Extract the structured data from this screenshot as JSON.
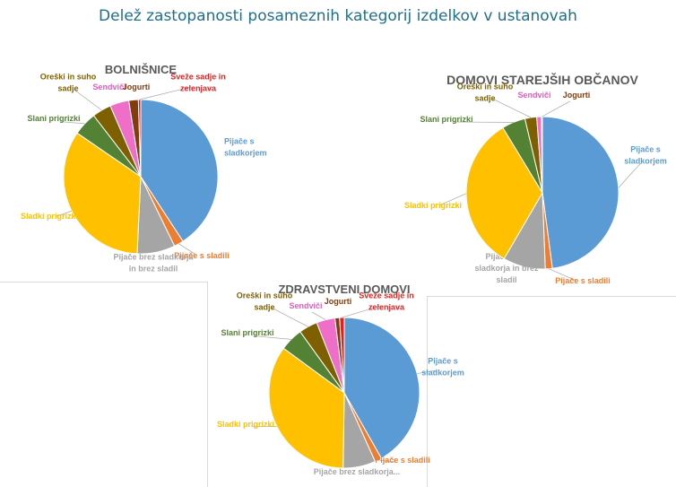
{
  "title": "Delež zastopanosti posameznih kategorij izdelkov v ustanovah",
  "categories": [
    {
      "label": "Pijače s sladkorjem",
      "color": "#5b9bd5",
      "text_color": "#5b9bd5"
    },
    {
      "label": "Pijače s sladili",
      "color": "#ed7d31",
      "text_color": "#ed7d31"
    },
    {
      "label": "Pijače brez sladkorja in brez sladil",
      "color": "#a5a5a5",
      "text_color": "#a5a5a5"
    },
    {
      "label": "Sladki prigrizki",
      "color": "#ffc000",
      "text_color": "#ffc000"
    },
    {
      "label": "Slani prigrizki",
      "color": "#548235",
      "text_color": "#548235"
    },
    {
      "label": "Oreški in suho sadje",
      "color": "#7f6000",
      "text_color": "#7f6000"
    },
    {
      "label": "Sendviči",
      "color": "#ee6ec8",
      "text_color": "#e25cc0"
    },
    {
      "label": "Jogurti",
      "color": "#843c0c",
      "text_color": "#843c0c"
    },
    {
      "label": "Sveže sadje in zelenjava",
      "color": "#e02020",
      "text_color": "#e02020"
    }
  ],
  "chart_data": [
    {
      "type": "pie",
      "title": "BOLNIŠNICE",
      "categories": [
        "Pijače s sladkorjem",
        "Pijače s sladili",
        "Pijače brez sladkorja in brez sladil",
        "Sladki prigrizki",
        "Slani prigrizki",
        "Oreški in suho sadje",
        "Sendviči",
        "Jogurti",
        "Sveže sadje in zelenjava"
      ],
      "values": [
        41,
        2,
        8,
        34,
        5,
        4,
        4,
        2,
        0.5
      ],
      "labels": [
        [
          "Pijače s",
          "sladkorjem"
        ],
        [
          "Pijače s sladili"
        ],
        [
          "Pijače brez sladkorja",
          "in brez sladil"
        ],
        [
          "Sladki prigrizki"
        ],
        [
          "Slani prigrizki"
        ],
        [
          "Oreški in suho",
          "sadje"
        ],
        [
          "Sendviči"
        ],
        [
          "Jogurti"
        ],
        [
          "Sveže sadje in",
          "zelenjava"
        ]
      ]
    },
    {
      "type": "pie",
      "title": "DOMOVI STAREJŠIH OBČANOV",
      "categories": [
        "Pijače s sladkorjem",
        "Pijače s sladili",
        "Pijače brez sladkorja in brez sladil",
        "Sladki prigrizki",
        "Slani prigrizki",
        "Oreški in suho sadje",
        "Sendviči",
        "Jogurti"
      ],
      "values": [
        48,
        1.5,
        9,
        33,
        5,
        2.5,
        1,
        0.2
      ],
      "labels": [
        [
          "Pijače s",
          "sladkorjem"
        ],
        [
          "Pijače s sladili"
        ],
        [
          "Pijače brez",
          "sladkorja in brez",
          "sladil"
        ],
        [
          "Sladki prigrizki"
        ],
        [
          "Slani prigrizki"
        ],
        [
          "Oreški in suho",
          "sadje"
        ],
        [
          "Sendviči"
        ],
        [
          "Jogurti"
        ]
      ]
    },
    {
      "type": "pie",
      "title": "ZDRAVSTVENI DOMOVI",
      "categories": [
        "Pijače s sladkorjem",
        "Pijače s sladili",
        "Pijače brez sladkorja in brez sladil",
        "Sladki prigrizki",
        "Slani prigrizki",
        "Oreški in suho sadje",
        "Sendviči",
        "Jogurti",
        "Sveže sadje in zelenjava"
      ],
      "values": [
        42,
        1.5,
        7,
        35,
        5,
        4,
        4,
        1,
        1
      ],
      "labels": [
        [
          "Pijače s",
          "sladkorjem"
        ],
        [
          "Pijače s sladili"
        ],
        [
          "Pijače brez sladkorja..."
        ],
        [
          "Sladki prigrizki"
        ],
        [
          "Slani prigrizki"
        ],
        [
          "Oreški in suho",
          "sadje"
        ],
        [
          "Sendviči"
        ],
        [
          "Jogurti"
        ],
        [
          "Sveže sadje in",
          "zelenjava"
        ]
      ]
    }
  ]
}
